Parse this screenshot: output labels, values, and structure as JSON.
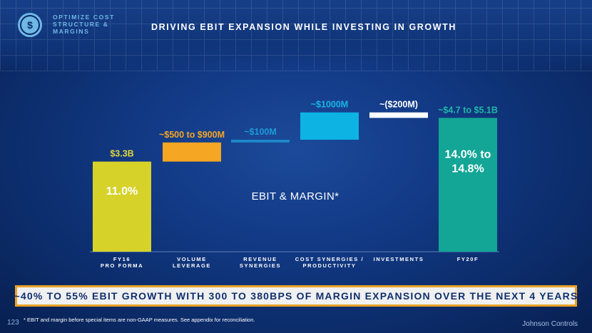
{
  "header": {
    "section_label": "OPTIMIZE COST STRUCTURE & MARGINS",
    "logo_icon": "dollar-arrows-icon",
    "title": "DRIVING EBIT EXPANSION WHILE INVESTING IN GROWTH"
  },
  "chart_data": {
    "type": "waterfall",
    "title": "EBIT & MARGIN*",
    "categories": [
      "FY16 PRO FORMA",
      "VOLUME LEVERAGE",
      "REVENUE SYNERGIES",
      "COST SYNERGIES / PRODUCTIVITY",
      "INVESTMENTS",
      "FY20F"
    ],
    "category_lines": [
      [
        "FY16",
        "PRO FORMA"
      ],
      [
        "VOLUME",
        "LEVERAGE"
      ],
      [
        "REVENUE",
        "SYNERGIES"
      ],
      [
        "COST SYNERGIES /",
        "PRODUCTIVITY"
      ],
      [
        "INVESTMENTS"
      ],
      [
        "FY20F"
      ]
    ],
    "bars": [
      {
        "kind": "total",
        "start": 0,
        "end": 3.3,
        "label": "$3.3B",
        "inner_label": [
          "11.0%"
        ],
        "color": "#d6d22a",
        "label_color": "#e3d73b"
      },
      {
        "kind": "delta",
        "start": 3.3,
        "end": 4.0,
        "label": "~$500 to $900M",
        "inner_label": [],
        "color": "#f5a623",
        "label_color": "#f5a623"
      },
      {
        "kind": "delta",
        "start": 4.0,
        "end": 4.1,
        "label": "~$100M",
        "inner_label": [],
        "color": "#1e88c9",
        "label_color": "#1e9ad8"
      },
      {
        "kind": "delta",
        "start": 4.1,
        "end": 5.1,
        "label": "~$1000M",
        "inner_label": [],
        "color": "#0db3e3",
        "label_color": "#1ab5e8"
      },
      {
        "kind": "delta",
        "start": 5.1,
        "end": 4.9,
        "label": "~($200M)",
        "inner_label": [],
        "color": "#ffffff",
        "label_color": "#ffffff"
      },
      {
        "kind": "total",
        "start": 0,
        "end": 4.9,
        "label": "~$4.7 to $5.1B",
        "inner_label": [
          "14.0% to",
          "14.8%"
        ],
        "color": "#13a596",
        "label_color": "#1fb8a8"
      }
    ],
    "ylim": [
      0,
      5.3
    ]
  },
  "banner": {
    "text": "~40% TO 55% EBIT GROWTH WITH 300 TO 380BPS OF MARGIN EXPANSION OVER THE NEXT 4 YEARS"
  },
  "footer": {
    "page_number": "123",
    "footnote": "* EBIT and margin before special items are non-GAAP measures.  See appendix for reconciliation.",
    "brand": "Johnson Controls"
  }
}
